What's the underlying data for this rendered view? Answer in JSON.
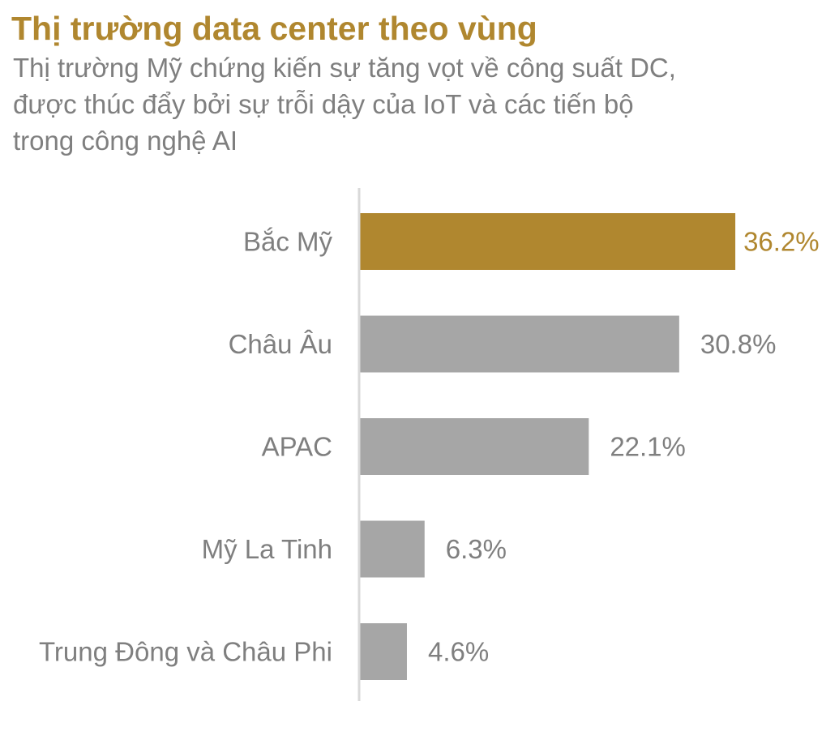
{
  "title": "Thị trường data center theo vùng",
  "subtitle": "Thị trường Mỹ chứng kiến sự tăng vọt về công suất DC, được thúc đẩy bởi sự trỗi dậy của IoT và các tiến bộ trong công nghệ AI",
  "colors": {
    "accent": "#b0872f",
    "bar": "#a6a6a6",
    "label": "#7f7f7f",
    "axis": "#d9d9d9"
  },
  "chart_data": {
    "type": "bar",
    "orientation": "horizontal",
    "title": "Thị trường data center theo vùng",
    "categories": [
      "Bắc Mỹ",
      "Châu Âu",
      "APAC",
      "Mỹ La Tinh",
      "Trung Đông và Châu Phi"
    ],
    "values": [
      36.2,
      30.8,
      22.1,
      6.3,
      4.6
    ],
    "value_labels": [
      "36.2%",
      "30.8%",
      "22.1%",
      "6.3%",
      "4.6%"
    ],
    "highlight_index": 0,
    "unit": "%",
    "xlim": [
      0,
      40
    ],
    "grid": false,
    "legend": "none"
  }
}
